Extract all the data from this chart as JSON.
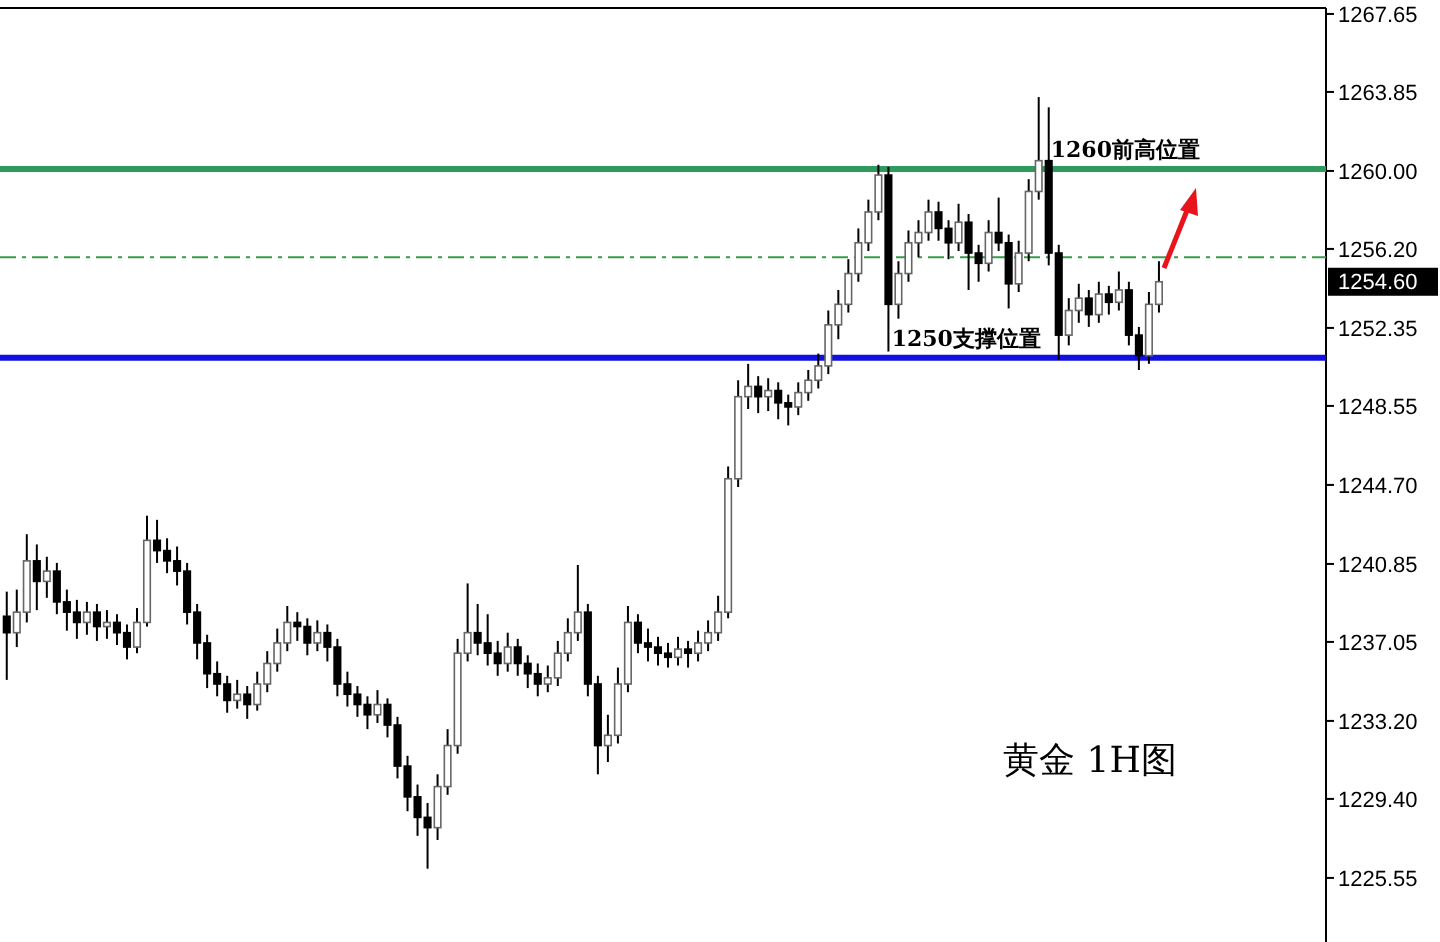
{
  "chart_data": {
    "type": "candlestick",
    "title": "黄金 1H图",
    "categories": [
      null,
      null,
      null,
      null,
      null,
      null,
      null,
      null,
      null,
      null,
      null,
      null,
      null,
      null,
      null,
      null,
      null,
      null,
      null,
      null,
      null,
      null,
      null,
      null,
      null,
      null,
      null,
      null,
      null,
      null,
      null,
      null,
      null,
      null,
      null,
      null,
      null,
      null,
      null,
      null,
      null,
      null,
      null,
      null,
      null,
      null,
      null,
      null,
      null,
      null,
      null,
      null,
      null,
      null,
      null,
      null,
      null,
      null,
      null,
      null,
      null,
      null,
      null,
      null,
      null,
      null,
      null,
      null,
      null,
      null,
      null,
      null,
      null,
      null,
      null,
      null,
      null,
      null,
      null,
      null,
      null,
      null,
      null,
      null,
      null,
      null,
      null,
      null,
      null,
      null,
      null,
      null,
      null,
      null,
      null,
      null,
      null,
      null,
      null,
      null,
      null,
      null,
      null,
      null,
      null,
      null,
      null,
      null,
      null,
      null,
      null,
      null,
      null,
      null,
      null,
      null,
      null,
      null,
      null,
      null,
      null,
      null,
      null,
      null,
      null,
      null,
      null,
      null,
      null,
      null,
      null,
      null
    ],
    "ohlc": [
      [
        1238.3,
        1239.5,
        1235.2,
        1237.5
      ],
      [
        1237.5,
        1239.6,
        1236.8,
        1238.5
      ],
      [
        1238.5,
        1242.3,
        1238,
        1241
      ],
      [
        1241,
        1241.8,
        1238.6,
        1240
      ],
      [
        1240,
        1241.2,
        1239.2,
        1240.5
      ],
      [
        1240.5,
        1240.9,
        1238.4,
        1239
      ],
      [
        1239,
        1239.6,
        1237.6,
        1238.5
      ],
      [
        1238.5,
        1239.1,
        1237.2,
        1238
      ],
      [
        1238,
        1239,
        1237.4,
        1238.5
      ],
      [
        1238.5,
        1238.9,
        1237.1,
        1237.8
      ],
      [
        1237.8,
        1238.6,
        1237.2,
        1238
      ],
      [
        1238,
        1238.4,
        1236.9,
        1237.5
      ],
      [
        1237.5,
        1237.9,
        1236.2,
        1236.8
      ],
      [
        1236.8,
        1238.7,
        1236.5,
        1238
      ],
      [
        1238,
        1243.2,
        1237.8,
        1242
      ],
      [
        1242,
        1243,
        1240.9,
        1241.5
      ],
      [
        1241.5,
        1242.1,
        1240.4,
        1241
      ],
      [
        1241,
        1241.7,
        1239.8,
        1240.5
      ],
      [
        1240.5,
        1240.9,
        1237.9,
        1238.5
      ],
      [
        1238.5,
        1238.9,
        1236.2,
        1237
      ],
      [
        1237,
        1237.4,
        1234.8,
        1235.5
      ],
      [
        1235.5,
        1236.1,
        1234.4,
        1235
      ],
      [
        1235,
        1235.4,
        1233.6,
        1234.2
      ],
      [
        1234.2,
        1235.2,
        1233.8,
        1234.5
      ],
      [
        1234.5,
        1234.9,
        1233.3,
        1234
      ],
      [
        1234,
        1235.6,
        1233.7,
        1235
      ],
      [
        1235,
        1236.6,
        1234.6,
        1236
      ],
      [
        1236,
        1237.7,
        1235.6,
        1237
      ],
      [
        1237,
        1238.8,
        1236.6,
        1238
      ],
      [
        1238,
        1238.5,
        1237.1,
        1237.8
      ],
      [
        1237.8,
        1238.2,
        1236.4,
        1237
      ],
      [
        1237,
        1238.1,
        1236.6,
        1237.5
      ],
      [
        1237.5,
        1237.9,
        1236.1,
        1236.8
      ],
      [
        1236.8,
        1237.2,
        1234.4,
        1235
      ],
      [
        1235,
        1235.6,
        1233.9,
        1234.5
      ],
      [
        1234.5,
        1234.9,
        1233.4,
        1234
      ],
      [
        1234,
        1234.4,
        1232.8,
        1233.5
      ],
      [
        1233.5,
        1234.7,
        1233.1,
        1234
      ],
      [
        1234,
        1234.3,
        1232.4,
        1233
      ],
      [
        1233,
        1233.4,
        1230.4,
        1231
      ],
      [
        1231,
        1231.5,
        1228.8,
        1229.5
      ],
      [
        1229.5,
        1230.1,
        1227.6,
        1228.5
      ],
      [
        1228.5,
        1229.2,
        1226,
        1228
      ],
      [
        1228,
        1230.6,
        1227.4,
        1230
      ],
      [
        1230,
        1232.8,
        1229.6,
        1232
      ],
      [
        1232,
        1237.2,
        1231.6,
        1236.5
      ],
      [
        1236.5,
        1239.9,
        1236.1,
        1237.5
      ],
      [
        1237.5,
        1238.9,
        1236.4,
        1237
      ],
      [
        1237,
        1238.4,
        1235.9,
        1236.5
      ],
      [
        1236.5,
        1237.1,
        1235.4,
        1236
      ],
      [
        1236,
        1237.5,
        1235.6,
        1236.8
      ],
      [
        1236.8,
        1237.2,
        1235.4,
        1236
      ],
      [
        1236,
        1236.4,
        1234.8,
        1235.5
      ],
      [
        1235.5,
        1236,
        1234.4,
        1235
      ],
      [
        1235,
        1235.9,
        1234.6,
        1235.3
      ],
      [
        1235.3,
        1237.1,
        1234.9,
        1236.5
      ],
      [
        1236.5,
        1238.2,
        1236.1,
        1237.5
      ],
      [
        1237.5,
        1240.8,
        1237.1,
        1238.5
      ],
      [
        1238.5,
        1238.9,
        1234.4,
        1235
      ],
      [
        1235,
        1235.4,
        1230.6,
        1232
      ],
      [
        1232,
        1233.5,
        1231.2,
        1232.5
      ],
      [
        1232.5,
        1235.8,
        1232.1,
        1235
      ],
      [
        1235,
        1238.8,
        1234.6,
        1238
      ],
      [
        1238,
        1238.4,
        1236.5,
        1237
      ],
      [
        1237,
        1237.7,
        1236.1,
        1236.8
      ],
      [
        1236.8,
        1237.3,
        1235.9,
        1236.5
      ],
      [
        1236.5,
        1237,
        1235.8,
        1236.3
      ],
      [
        1236.3,
        1237.3,
        1235.9,
        1236.7
      ],
      [
        1236.7,
        1237.1,
        1235.8,
        1236.5
      ],
      [
        1236.5,
        1237.6,
        1236.1,
        1237
      ],
      [
        1237,
        1238.1,
        1236.6,
        1237.5
      ],
      [
        1237.5,
        1239.3,
        1237.1,
        1238.5
      ],
      [
        1238.5,
        1245.6,
        1238.2,
        1245
      ],
      [
        1245,
        1249.8,
        1244.6,
        1249
      ],
      [
        1249,
        1250.6,
        1248.4,
        1249.5
      ],
      [
        1249.5,
        1250,
        1248.2,
        1249
      ],
      [
        1249,
        1249.9,
        1248.3,
        1249.3
      ],
      [
        1249.3,
        1249.7,
        1247.9,
        1248.7
      ],
      [
        1248.7,
        1249.1,
        1247.6,
        1248.5
      ],
      [
        1248.5,
        1249.7,
        1248.1,
        1249.2
      ],
      [
        1249.2,
        1250.3,
        1248.8,
        1249.8
      ],
      [
        1249.8,
        1251.1,
        1249.4,
        1250.5
      ],
      [
        1250.5,
        1253.2,
        1250.1,
        1252.5
      ],
      [
        1252.5,
        1254.2,
        1251.8,
        1253.5
      ],
      [
        1253.5,
        1255.7,
        1253.1,
        1255
      ],
      [
        1255,
        1257.2,
        1254.6,
        1256.5
      ],
      [
        1256.5,
        1258.6,
        1256.1,
        1258
      ],
      [
        1258,
        1260.3,
        1257.6,
        1259.8
      ],
      [
        1259.8,
        1260.2,
        1251.2,
        1253.5
      ],
      [
        1253.5,
        1255.6,
        1252.8,
        1255
      ],
      [
        1255,
        1257.1,
        1254.6,
        1256.5
      ],
      [
        1256.5,
        1257.6,
        1255.8,
        1257
      ],
      [
        1257,
        1258.6,
        1256.6,
        1258
      ],
      [
        1258,
        1258.5,
        1256.6,
        1257.2
      ],
      [
        1257.2,
        1257.6,
        1255.7,
        1256.5
      ],
      [
        1256.5,
        1258.4,
        1256.1,
        1257.5
      ],
      [
        1257.5,
        1257.9,
        1254.2,
        1256
      ],
      [
        1256,
        1256.4,
        1254.6,
        1255.5
      ],
      [
        1255.5,
        1257.6,
        1255.1,
        1257
      ],
      [
        1257,
        1258.7,
        1256.1,
        1256.5
      ],
      [
        1256.5,
        1256.9,
        1253.3,
        1254.5
      ],
      [
        1254.5,
        1256.6,
        1254.1,
        1256
      ],
      [
        1256,
        1259.6,
        1255.6,
        1259
      ],
      [
        1259,
        1263.6,
        1258.6,
        1260.5
      ],
      [
        1260.5,
        1263.1,
        1255.4,
        1256
      ],
      [
        1256,
        1256.4,
        1250.8,
        1252
      ],
      [
        1252,
        1253.8,
        1251.5,
        1253.2
      ],
      [
        1253.2,
        1254.5,
        1252.6,
        1253.8
      ],
      [
        1253.8,
        1254.2,
        1252.4,
        1253
      ],
      [
        1253,
        1254.6,
        1252.6,
        1254
      ],
      [
        1254,
        1254.4,
        1253,
        1253.6
      ],
      [
        1253.6,
        1255.1,
        1253.2,
        1254.2
      ],
      [
        1254.2,
        1254.6,
        1251.5,
        1252
      ],
      [
        1252,
        1252.4,
        1250.3,
        1251
      ],
      [
        1251,
        1254.1,
        1250.6,
        1253.5
      ],
      [
        1253.5,
        1255.6,
        1253.1,
        1254.6
      ],
      null,
      null,
      null,
      null,
      null,
      null,
      null,
      null,
      null,
      null,
      null,
      null,
      null,
      null,
      null,
      null
    ],
    "ylim": [
      1222.72,
      1267.94
    ],
    "yticks": [
      1267.65,
      1263.85,
      {
        "value": 1260,
        "label": "1260.00"
      },
      {
        "value": 1256.2,
        "label": "1256.20"
      },
      1252.35,
      1248.55,
      {
        "value": 1244.7,
        "label": "1244.70"
      },
      1240.85,
      1237.05,
      {
        "value": 1233.2,
        "label": "1233.20"
      },
      {
        "value": 1229.4,
        "label": "1229.40"
      },
      1225.55
    ],
    "tick_labels": "y",
    "ref_lines": [
      {
        "axis": "y",
        "value": 1255.8,
        "color": "#3a9a4a",
        "line_style": "dashed"
      },
      {
        "axis": "y",
        "value": 1260.1,
        "label": "1260前高位置",
        "color": "#2e9a5e",
        "line_style": "solid"
      },
      {
        "axis": "y",
        "value": 1250.9,
        "label": "1250支撑位置",
        "color": "#1010e0",
        "line_style": "solid"
      }
    ],
    "annotations": [
      "1254.60"
    ]
  }
}
